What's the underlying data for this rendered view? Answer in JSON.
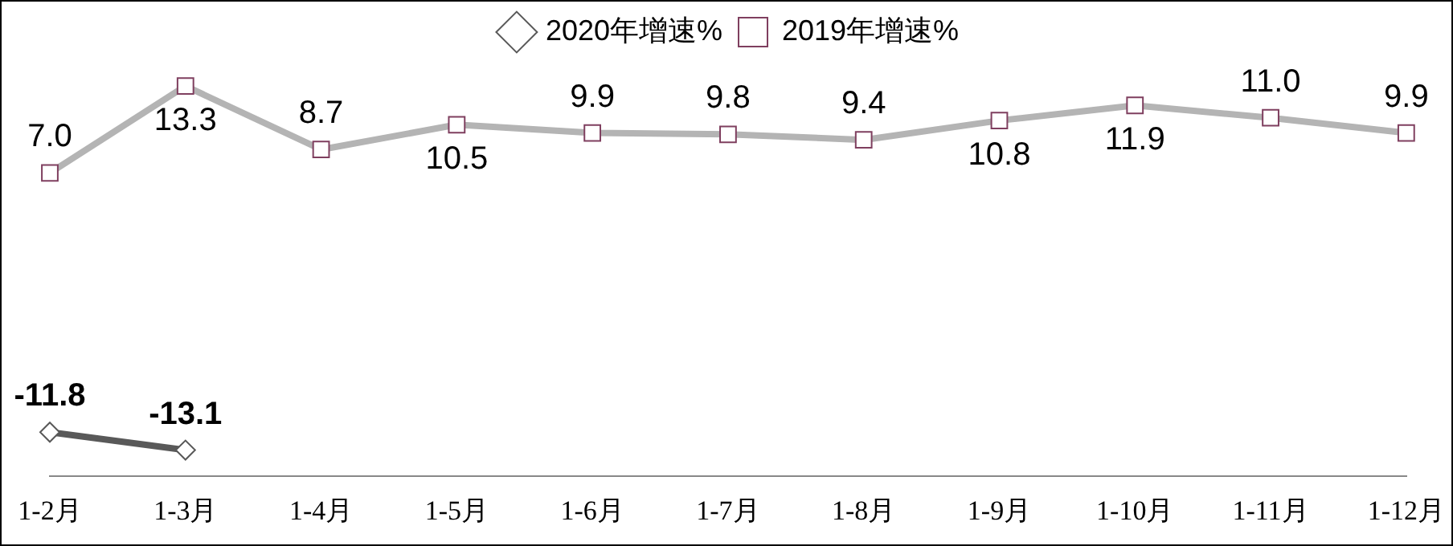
{
  "chart_data": {
    "type": "line",
    "categories": [
      "1-2月",
      "1-3月",
      "1-4月",
      "1-5月",
      "1-6月",
      "1-7月",
      "1-8月",
      "1-9月",
      "1-10月",
      "1-11月",
      "1-12月"
    ],
    "series": [
      {
        "name": "2020年增速%",
        "color": "#595959",
        "marker": "diamond",
        "values": [
          -11.8,
          -13.1,
          null,
          null,
          null,
          null,
          null,
          null,
          null,
          null,
          null
        ],
        "value_labels": [
          "-11.8",
          "-13.1",
          null,
          null,
          null,
          null,
          null,
          null,
          null,
          null,
          null
        ]
      },
      {
        "name": "2019年增速%",
        "color": "#b4b4b4",
        "marker": "square",
        "values": [
          7.0,
          13.3,
          8.7,
          10.5,
          9.9,
          9.8,
          9.4,
          10.8,
          11.9,
          11.0,
          9.9
        ],
        "value_labels": [
          "7.0",
          "13.3",
          "8.7",
          "10.5",
          "9.9",
          "9.8",
          "9.4",
          "10.8",
          "11.9",
          "11.0",
          "9.9"
        ]
      }
    ],
    "legend": "top",
    "grid": false
  }
}
